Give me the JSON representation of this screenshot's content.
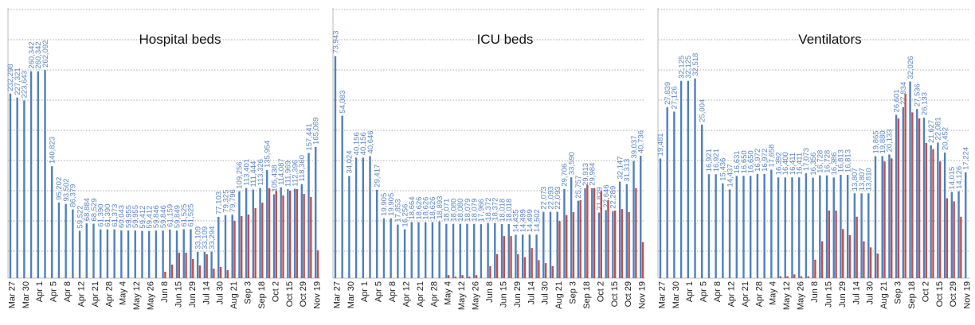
{
  "chart_data": [
    {
      "type": "bar",
      "title": "Hospital beds",
      "categories": [
        "Mar 27",
        null,
        "Mar 30",
        null,
        "Apr 1",
        null,
        "Apr 5",
        null,
        "Apr 8",
        null,
        "Apr 12",
        null,
        "Apr 21",
        null,
        "Apr 28",
        null,
        "May 4",
        null,
        "May 12",
        null,
        "May 26",
        null,
        "Jun 8",
        null,
        "Jun 15",
        null,
        "Jun 29",
        null,
        "Jul 14",
        null,
        "Jul 30",
        null,
        "Aug 21",
        null,
        "Sep 3",
        null,
        "Sep 18",
        null,
        "Oct 2",
        null,
        "Oct 15",
        null,
        "Oct 29",
        null,
        "Nov 19"
      ],
      "ylim": [
        0,
        340000
      ],
      "series": [
        {
          "color": "#4f81bd",
          "values": [
            232298,
            227321,
            223643,
            260342,
            260342,
            262092,
            140823,
            95202,
            93502,
            86379,
            59522,
            68884,
            68529,
            61390,
            61390,
            61373,
            60043,
            59955,
            59955,
            59412,
            59412,
            59846,
            59846,
            61159,
            59849,
            61525,
            61525,
            33109,
            33109,
            33294,
            77103,
            79325,
            79796,
            109256,
            113401,
            111444,
            113326,
            135954,
            105438,
            114087,
            111969,
            112396,
            118360,
            157441,
            165069
          ],
          "value_labels": [
            "232,298",
            "227,321",
            "223,643",
            "260,342",
            "260,342",
            "262,092",
            "140,823",
            "95,202",
            "93,502",
            "86,379",
            "59,522",
            "68,884",
            "68,529",
            "61,390",
            "61,390",
            "61,373",
            "60,043",
            "59,955",
            "59,955",
            "59,412",
            "59,412",
            "59,846",
            "59,846",
            "61,159",
            "59,849",
            "61,525",
            "61,525",
            "33,109",
            "33,109",
            "33,294",
            "77,103",
            "79,325",
            "79,796",
            "109,256",
            "113,401",
            "111,444",
            "113,326",
            "135,954",
            "105,438",
            "114,087",
            "111,969",
            "112,396",
            "118,360",
            "157,441",
            "165,069"
          ]
        },
        {
          "color": "#c0504d",
          "values": [
            0,
            0,
            0,
            0,
            0,
            0,
            0,
            0,
            0,
            0,
            0,
            0,
            0,
            0,
            0,
            0,
            0,
            0,
            0,
            0,
            0,
            0,
            8000,
            17000,
            32000,
            32000,
            24000,
            16000,
            30000,
            12000,
            14000,
            10000,
            72000,
            78000,
            80000,
            88000,
            95000,
            113000,
            110000,
            104000,
            110000,
            112000,
            106000,
            102000,
            35000
          ]
        }
      ]
    },
    {
      "type": "bar",
      "title": "ICU beds",
      "categories": [
        "Mar 27",
        null,
        "Mar 30",
        null,
        "Apr 1",
        null,
        "Apr 5",
        null,
        "Apr 8",
        null,
        "Apr 12",
        null,
        "Apr 21",
        null,
        "Apr 28",
        null,
        "May 4",
        null,
        "May 12",
        null,
        "May 26",
        null,
        "Jun 8",
        null,
        "Jun 15",
        null,
        "Jun 29",
        null,
        "Jul 14",
        null,
        "Jul 30",
        null,
        "Aug 21",
        null,
        "Sep 3",
        null,
        "Sep 18",
        null,
        "Oct 2",
        null,
        "Oct 15",
        null,
        "Oct 29",
        null,
        "Nov 19"
      ],
      "ylim": [
        0,
        90000
      ],
      "series": [
        {
          "color": "#4f81bd",
          "values": [
            73943,
            54083,
            34024,
            40156,
            40156,
            40646,
            29417,
            19905,
            19905,
            17853,
            16256,
            18664,
            18626,
            18626,
            18626,
            18893,
            18071,
            18080,
            18080,
            18079,
            18079,
            17966,
            18372,
            18372,
            18018,
            18018,
            14435,
            14499,
            14499,
            14502,
            22073,
            22093,
            22093,
            29706,
            33590,
            25757,
            29913,
            29984,
            21829,
            22646,
            22289,
            32147,
            31313,
            39037,
            40736
          ],
          "value_labels": [
            "73,943",
            "54,083",
            "34,024",
            "40,156",
            "40,156",
            "40,646",
            "29,417",
            "19,905",
            "19,905",
            "17,853",
            "16,256",
            "18,664",
            "18,626",
            "18,626",
            "18,626",
            "18,893",
            "18,071",
            "18,080",
            "18,080",
            "18,079",
            "18,079",
            "17,966",
            "18,372",
            "18,372",
            "18,018",
            "18,018",
            "14,435",
            "14,499",
            "14,499",
            "14,502",
            "22,073",
            "22,093",
            "22,093",
            "29,706",
            "33,590",
            "25,757",
            "29,913",
            "29,984",
            "21,829",
            "22,646",
            "22,289",
            "32,147",
            "31,313",
            "39,037",
            "40,736"
          ]
        },
        {
          "color": "#c0504d",
          "values": [
            0,
            0,
            0,
            0,
            0,
            0,
            0,
            0,
            0,
            0,
            0,
            0,
            0,
            0,
            0,
            0,
            1000,
            500,
            1000,
            500,
            1000,
            0,
            4000,
            8000,
            14000,
            14000,
            8000,
            7000,
            10000,
            6000,
            5000,
            4000,
            19000,
            21000,
            22000,
            26000,
            31000,
            30000,
            29000,
            26000,
            22500,
            23000,
            22000,
            30000,
            12000
          ]
        }
      ]
    },
    {
      "type": "bar",
      "title": "Ventilators",
      "categories": [
        "Mar 27",
        null,
        "Mar 30",
        null,
        "Apr 1",
        null,
        "Apr 5",
        null,
        "Apr 8",
        null,
        "Apr 12",
        null,
        "Apr 21",
        null,
        "Apr 28",
        null,
        "May 4",
        null,
        "May 12",
        null,
        "May 26",
        null,
        "Jun 8",
        null,
        "Jun 15",
        null,
        "Jun 29",
        null,
        "Jul 14",
        null,
        "Jul 30",
        null,
        "Aug 21",
        null,
        "Sep 3",
        null,
        "Sep 18",
        null,
        "Oct 2",
        null,
        "Oct 15",
        null,
        "Oct 29",
        null,
        "Nov 19"
      ],
      "ylim": [
        0,
        44000
      ],
      "series": [
        {
          "color": "#4f81bd",
          "values": [
            19481,
            27839,
            27126,
            32125,
            32125,
            32518,
            25004,
            16921,
            16921,
            15436,
            14437,
            16631,
            16650,
            16650,
            16972,
            16972,
            17658,
            16392,
            16400,
            16411,
            16411,
            17073,
            16356,
            16728,
            16728,
            16386,
            16813,
            16813,
            13807,
            13807,
            13810,
            19865,
            19880,
            20133,
            26601,
            27834,
            32026,
            27536,
            26133,
            21627,
            22081,
            20452,
            14015,
            14126,
            17224
          ],
          "value_labels": [
            "19,481",
            "27,839",
            "27,126",
            "32,125",
            "32,125",
            "32,518",
            "25,004",
            "16,921",
            "16,921",
            "15,436",
            "14,437",
            "16,631",
            "16,650",
            "16,650",
            "16,972",
            "16,972",
            "17,658",
            "16,392",
            "16,400",
            "16,411",
            "16,411",
            "17,073",
            "16,356",
            "16,728",
            "16,728",
            "16,386",
            "16,813",
            "16,813",
            "13,807",
            "13,807",
            "13,810",
            "19,865",
            "19,880",
            "20,133",
            "26,601",
            "27,834",
            "32,026",
            "27,536",
            "26,133",
            "21,627",
            "22,081",
            "20,452",
            "14,015",
            "14,126",
            "17,224"
          ]
        },
        {
          "color": "#c0504d",
          "values": [
            0,
            0,
            0,
            0,
            0,
            0,
            0,
            0,
            0,
            0,
            0,
            0,
            0,
            0,
            0,
            0,
            0,
            300,
            300,
            600,
            300,
            300,
            3000,
            6000,
            11000,
            11000,
            8000,
            7000,
            10000,
            6000,
            5000,
            4000,
            19000,
            19500,
            26000,
            30000,
            27000,
            26000,
            22000,
            21000,
            19000,
            13000,
            12500,
            10000,
            0
          ]
        }
      ]
    }
  ]
}
